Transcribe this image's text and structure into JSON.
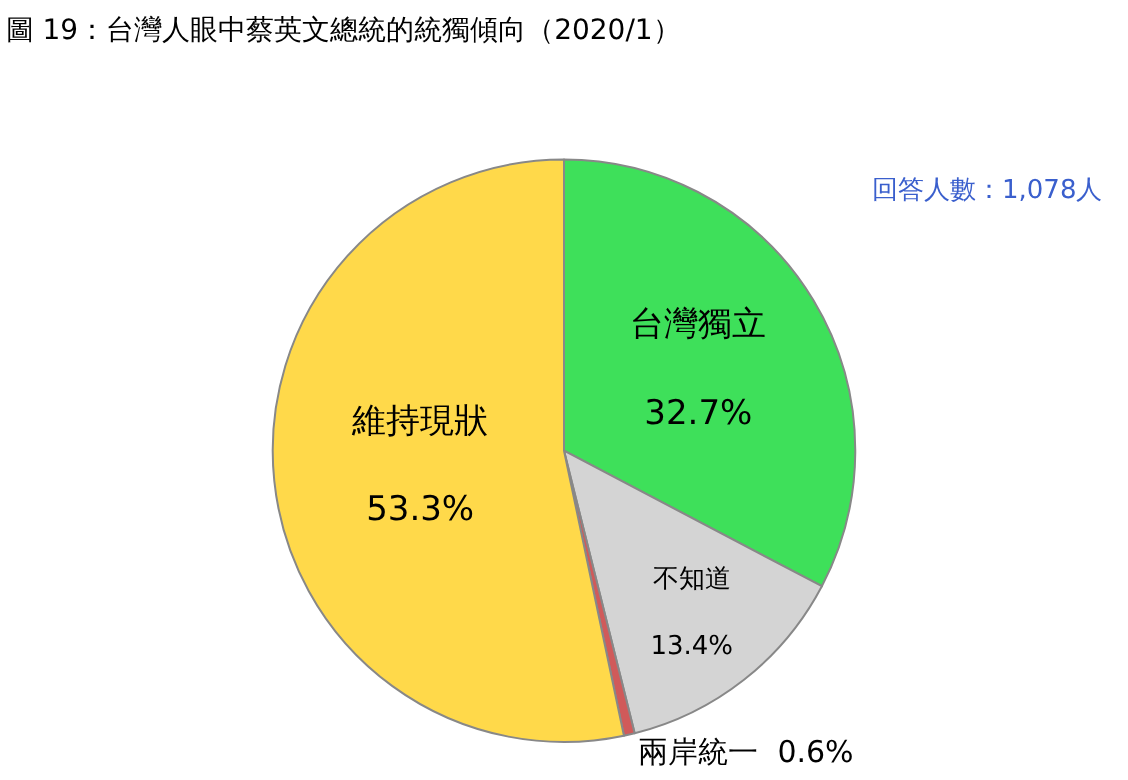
{
  "chart_data": {
    "type": "pie",
    "title": "圖 19：台灣人眼中蔡英文總統的統獨傾向（2020/1）",
    "categories": [
      "台灣獨立",
      "不知道",
      "兩岸統一",
      "維持現狀"
    ],
    "values": [
      32.7,
      13.4,
      0.6,
      53.3
    ],
    "value_labels": [
      "32.7%",
      "13.4%",
      "0.6%",
      "53.3%"
    ],
    "colors": [
      "#3ee05a",
      "#d4d4d4",
      "#d05a5a",
      "#ffd94a"
    ],
    "annotations": [
      "回答人數：1,078人"
    ],
    "legend": false
  }
}
